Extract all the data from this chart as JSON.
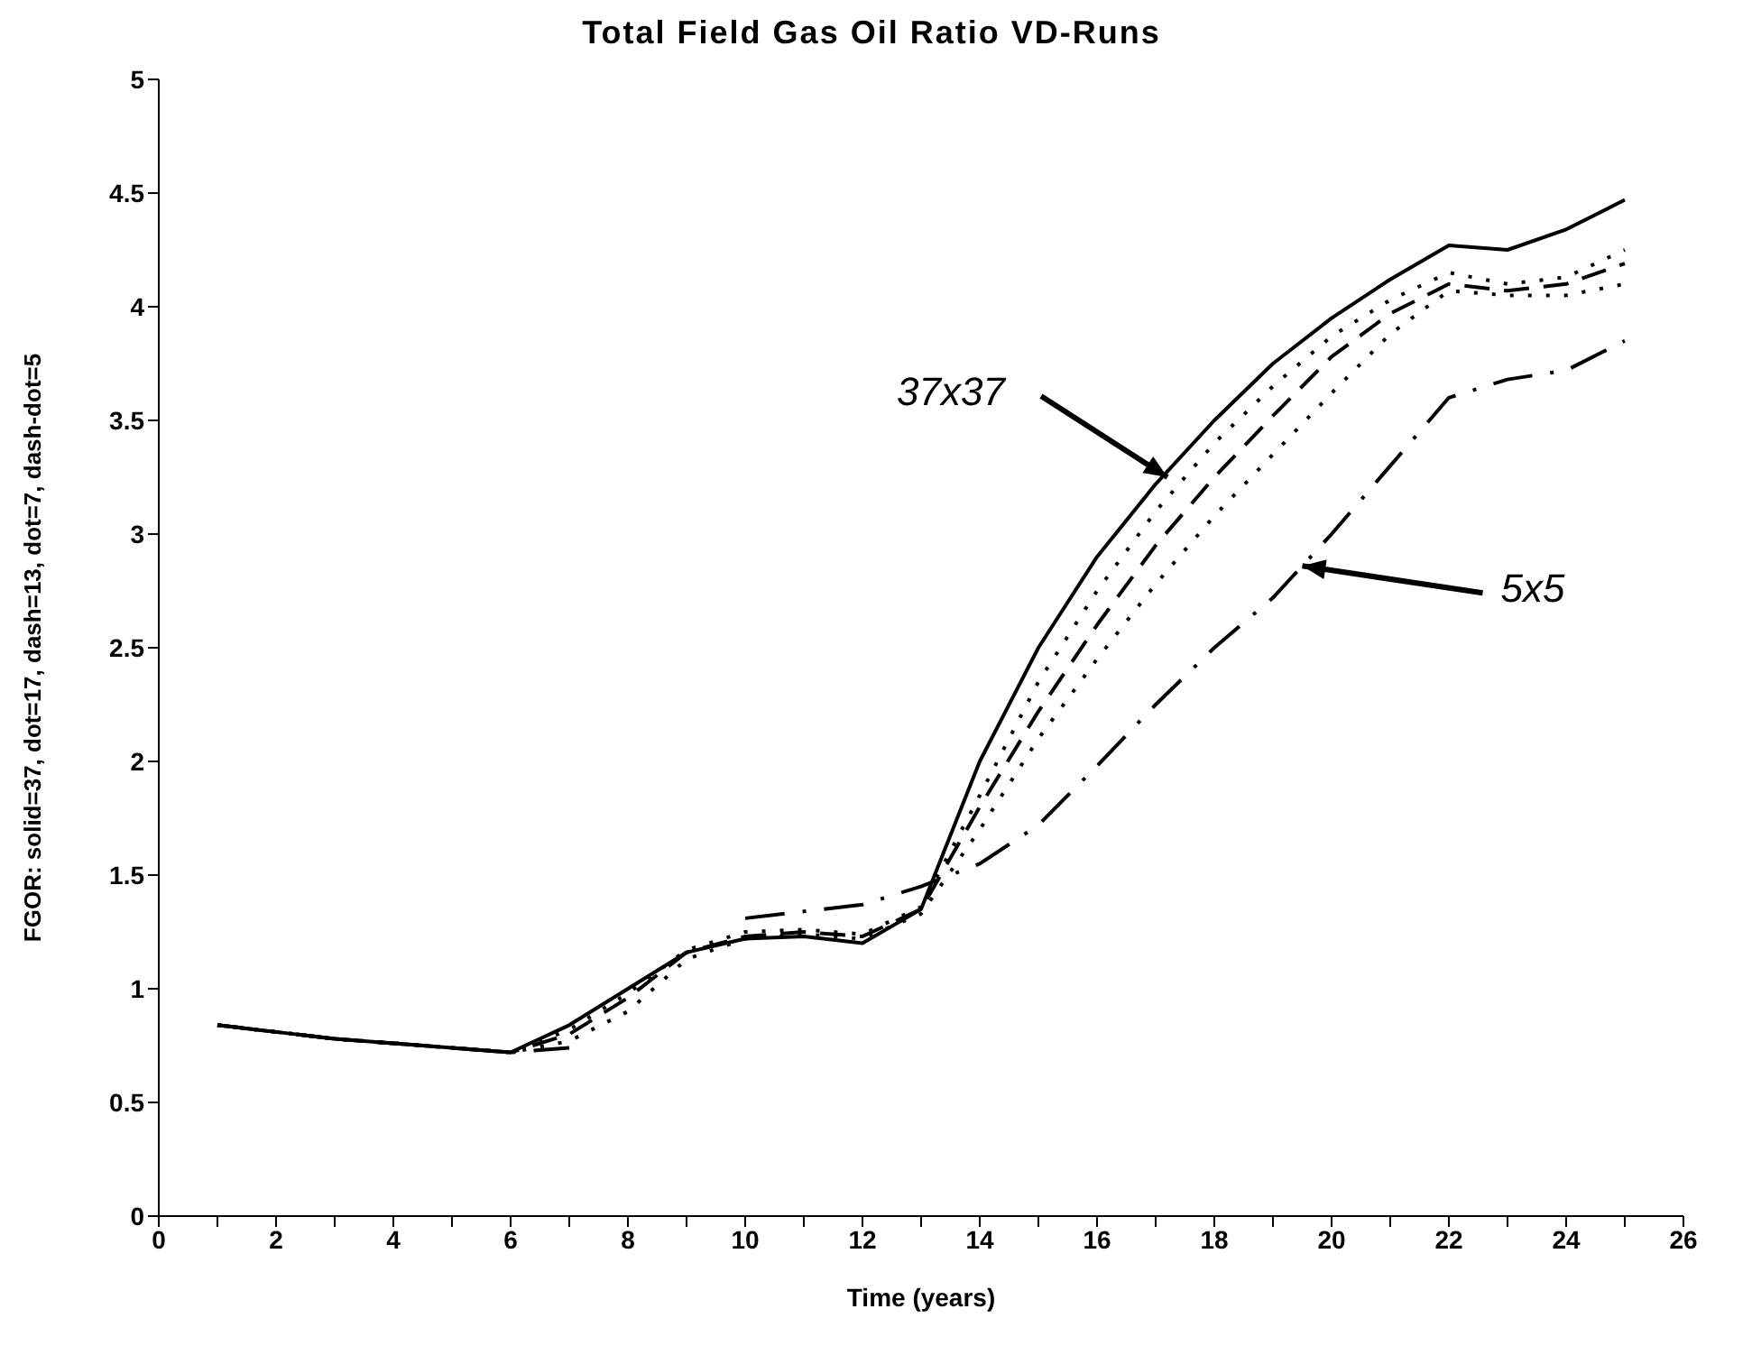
{
  "chart_data": {
    "type": "line",
    "title": "Total Field Gas Oil Ratio VD-Runs",
    "xlabel": "Time (years)",
    "ylabel": "FGOR: solid=37, dot=17, dash=13, dot=7, dash-dot=5",
    "x": [
      1,
      2,
      3,
      4,
      5,
      6,
      7,
      8,
      9,
      10,
      11,
      12,
      13,
      14,
      15,
      16,
      17,
      18,
      19,
      20,
      21,
      22,
      23,
      24,
      25
    ],
    "series": [
      {
        "color": "#000000",
        "line_style": "solid",
        "values": [
          0.84,
          0.81,
          0.78,
          0.76,
          0.74,
          0.72,
          0.84,
          1.0,
          1.16,
          1.22,
          1.23,
          1.2,
          1.35,
          2.0,
          2.5,
          2.9,
          3.22,
          3.5,
          3.75,
          3.95,
          4.12,
          4.27,
          4.25,
          4.34,
          4.47
        ]
      },
      {
        "color": "#000000",
        "line_style": "dotted",
        "values": [
          0.84,
          0.81,
          0.78,
          0.76,
          0.74,
          0.72,
          0.82,
          0.98,
          1.17,
          1.25,
          1.26,
          1.24,
          1.36,
          1.85,
          2.35,
          2.75,
          3.1,
          3.4,
          3.65,
          3.87,
          4.03,
          4.15,
          4.1,
          4.13,
          4.25
        ]
      },
      {
        "color": "#000000",
        "line_style": "dashed",
        "values": [
          0.84,
          0.81,
          0.78,
          0.76,
          0.74,
          0.72,
          0.8,
          0.96,
          1.16,
          1.23,
          1.25,
          1.23,
          1.35,
          1.8,
          2.22,
          2.6,
          2.95,
          3.25,
          3.52,
          3.78,
          3.97,
          4.1,
          4.07,
          4.1,
          4.19
        ]
      },
      {
        "color": "#000000",
        "line_style": "dotted",
        "values": [
          0.84,
          0.81,
          0.78,
          0.76,
          0.74,
          0.72,
          0.77,
          0.9,
          1.13,
          1.22,
          1.24,
          1.22,
          1.33,
          1.7,
          2.1,
          2.45,
          2.78,
          3.08,
          3.35,
          3.62,
          3.88,
          4.07,
          4.05,
          4.05,
          4.1
        ]
      },
      {
        "color": "#000000",
        "line_style": "dashdot",
        "values": [
          0.84,
          0.81,
          0.78,
          0.76,
          0.74,
          0.72,
          0.74,
          null,
          null,
          1.31,
          1.34,
          1.37,
          1.45,
          1.55,
          1.72,
          1.98,
          2.25,
          2.5,
          2.72,
          3.0,
          3.3,
          3.6,
          3.68,
          3.72,
          3.85
        ]
      }
    ],
    "annotations": [
      {
        "text": "37x37",
        "x": 17.2,
        "y": 3.25
      },
      {
        "text": "5x5",
        "x": 19.5,
        "y": 2.86
      }
    ],
    "xlim": [
      0,
      26
    ],
    "xticks": [
      0,
      {
        "value": 1,
        "label": null
      },
      2,
      {
        "value": 3,
        "label": null
      },
      4,
      {
        "value": 5,
        "label": null
      },
      6,
      {
        "value": 7,
        "label": null
      },
      8,
      {
        "value": 9,
        "label": null
      },
      10,
      {
        "value": 11,
        "label": null
      },
      12,
      {
        "value": 13,
        "label": null
      },
      14,
      {
        "value": 15,
        "label": null
      },
      16,
      {
        "value": 17,
        "label": null
      },
      18,
      {
        "value": 19,
        "label": null
      },
      20,
      {
        "value": 21,
        "label": null
      },
      22,
      {
        "value": 23,
        "label": null
      },
      24,
      {
        "value": 25,
        "label": null
      },
      26
    ],
    "ylim": [
      0,
      5
    ],
    "yticks": [
      0,
      0.5,
      1,
      1.5,
      2,
      2.5,
      3,
      3.5,
      4,
      4.5,
      5
    ],
    "grid": false,
    "legend": false,
    "marker": "none"
  }
}
